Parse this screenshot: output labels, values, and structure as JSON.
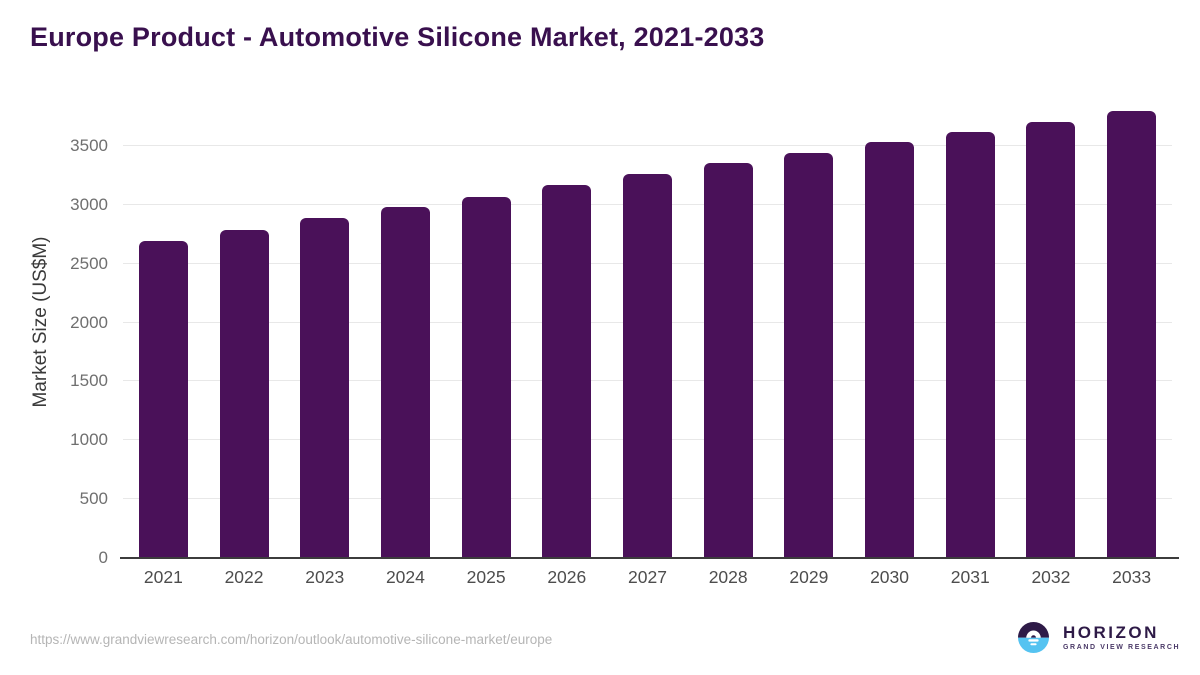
{
  "header": {
    "title": "Europe Product - Automotive Silicone Market, 2021-2033"
  },
  "chart_data": {
    "type": "bar",
    "title": "Europe Product - Automotive Silicone Market, 2021-2033",
    "categories": [
      "2021",
      "2022",
      "2023",
      "2024",
      "2025",
      "2026",
      "2027",
      "2028",
      "2029",
      "2030",
      "2031",
      "2032",
      "2033"
    ],
    "values": [
      2690,
      2785,
      2885,
      2985,
      3070,
      3170,
      3260,
      3355,
      3440,
      3530,
      3615,
      3705,
      3800
    ],
    "xlabel": "",
    "ylabel": "Market Size (US$M)",
    "y_ticks": [
      0,
      500,
      1000,
      1500,
      2000,
      2500,
      3000,
      3500
    ],
    "ylim": [
      0,
      3890
    ],
    "grid": "horizontal",
    "legend": "none"
  },
  "colors": {
    "bar": "#4A1159",
    "title": "#39104E",
    "axis": "#3C3C3C",
    "gridline": "#E8E8E8",
    "y_tick_label": "#6F6F6F",
    "x_tick_label": "#4D4D4D",
    "url_text": "#B5B5B5",
    "logo_brand": "#2E1A47",
    "logo_icon_top": "#2E1A47",
    "logo_icon_bottom": "#55C3F1"
  },
  "footer": {
    "source_url": "https://www.grandviewresearch.com/horizon/outlook/automotive-silicone-market/europe",
    "logo": {
      "brand": "HORIZON",
      "tagline": "GRAND VIEW RESEARCH",
      "icon": "horizon-sunrise-icon"
    }
  }
}
